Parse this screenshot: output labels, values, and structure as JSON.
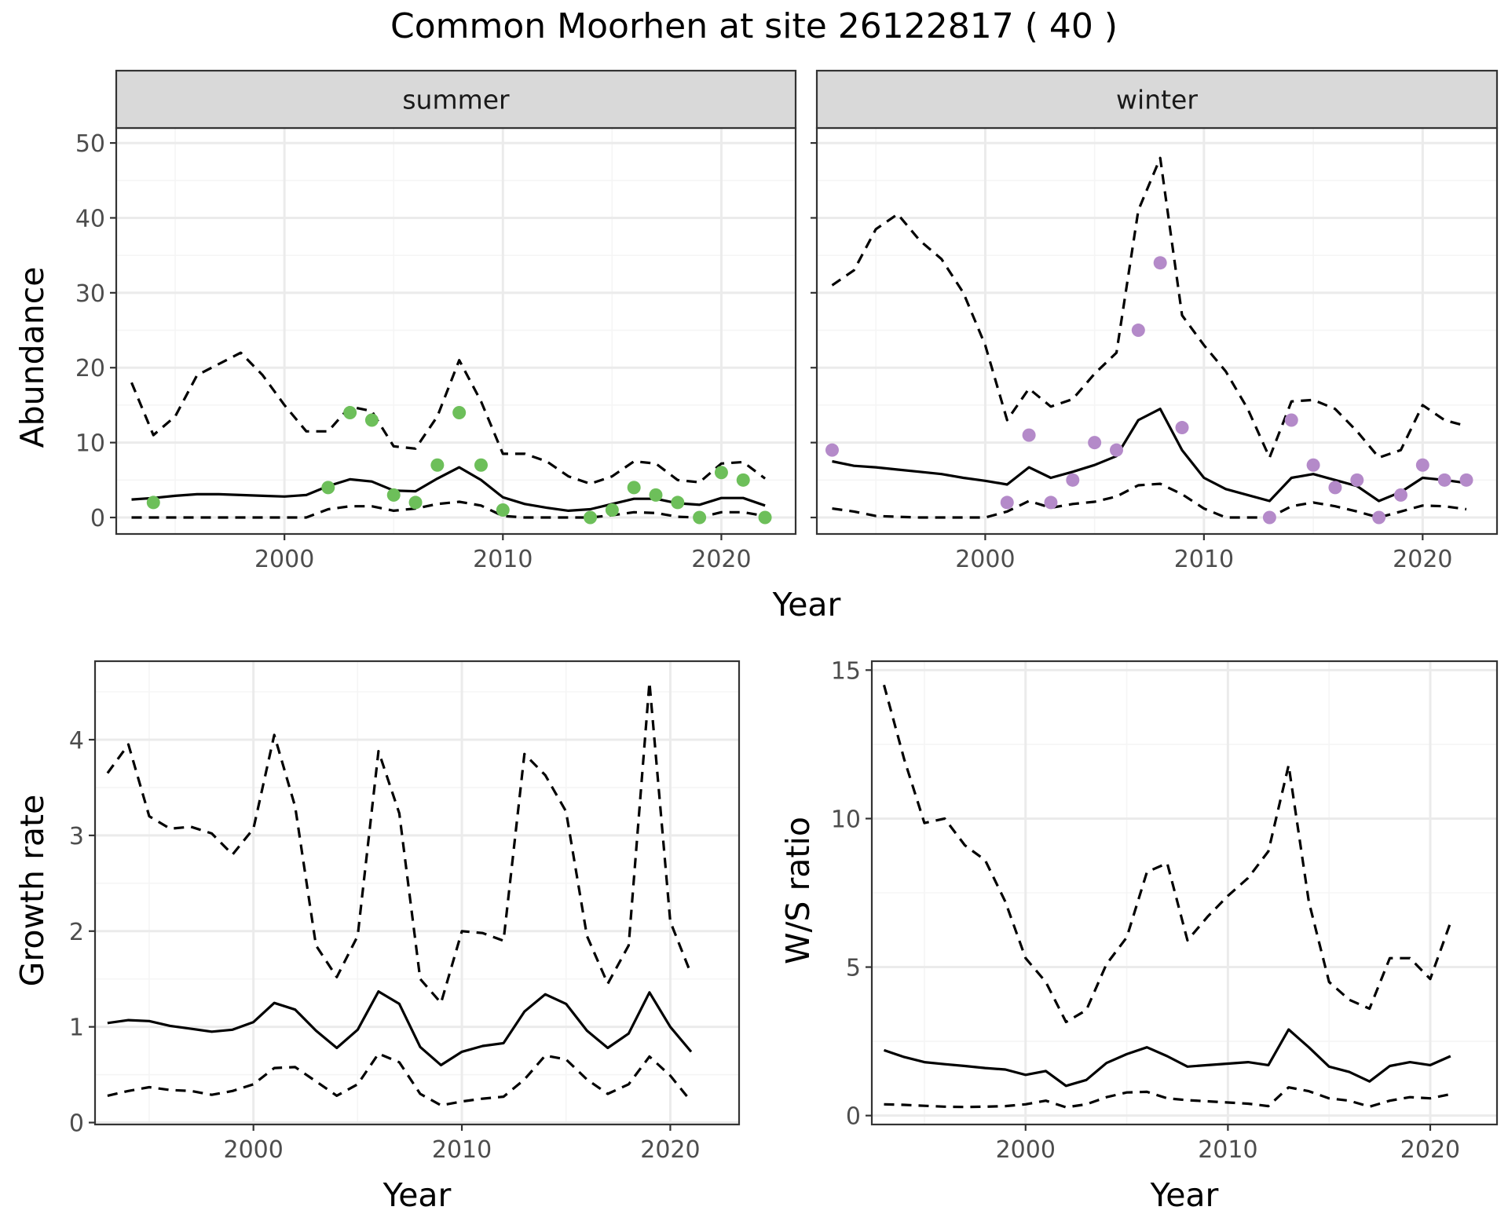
{
  "title": "Common Moorhen at site 26122817 ( 40 )",
  "colors": {
    "summer": "#6dbf5a",
    "winter": "#b48ac9",
    "line": "#000000",
    "grid_major": "#ebebeb",
    "grid_minor": "#f5f5f5",
    "strip_bg": "#d9d9d9"
  },
  "chart_data": [
    {
      "type": "line",
      "panel": "summer",
      "facet_label": "summer",
      "xlabel": "Year",
      "ylabel": "Abundance",
      "xlim": [
        1992.3,
        2023.4
      ],
      "ylim": [
        -2.2,
        52
      ],
      "x_ticks": [
        2000,
        2010,
        2020
      ],
      "y_ticks": [
        0,
        10,
        20,
        30,
        40,
        50
      ],
      "legend": "none",
      "grid": true,
      "series": [
        {
          "role": "fitted",
          "style": "solid",
          "x": [
            1993,
            1994,
            1995,
            1996,
            1997,
            1998,
            1999,
            2000,
            2001,
            2002,
            2003,
            2004,
            2005,
            2006,
            2007,
            2008,
            2009,
            2010,
            2011,
            2012,
            2013,
            2014,
            2015,
            2016,
            2017,
            2018,
            2019,
            2020,
            2021,
            2022
          ],
          "values": [
            2.4,
            2.6,
            2.9,
            3.1,
            3.1,
            3.0,
            2.9,
            2.8,
            3.0,
            4.2,
            5.1,
            4.8,
            3.6,
            3.5,
            5.2,
            6.7,
            5.0,
            2.7,
            1.8,
            1.3,
            0.9,
            1.1,
            1.8,
            2.5,
            2.5,
            1.9,
            1.7,
            2.6,
            2.6,
            1.6
          ]
        },
        {
          "role": "upper",
          "style": "dashed",
          "x": [
            1993,
            1994,
            1995,
            1996,
            1997,
            1998,
            1999,
            2000,
            2001,
            2002,
            2003,
            2004,
            2005,
            2006,
            2007,
            2008,
            2009,
            2010,
            2011,
            2012,
            2013,
            2014,
            2015,
            2016,
            2017,
            2018,
            2019,
            2020,
            2021,
            2022
          ],
          "values": [
            18,
            11,
            13.5,
            19,
            20.5,
            22,
            19,
            15,
            11.5,
            11.5,
            14.8,
            14.2,
            9.5,
            9.2,
            13.5,
            21,
            15.5,
            8.5,
            8.5,
            7.5,
            5.5,
            4.5,
            5.5,
            7.5,
            7.2,
            5,
            4.7,
            7.2,
            7.4,
            5.2
          ]
        },
        {
          "role": "lower",
          "style": "dashed",
          "x": [
            1993,
            1994,
            1995,
            1996,
            1997,
            1998,
            1999,
            2000,
            2001,
            2002,
            2003,
            2004,
            2005,
            2006,
            2007,
            2008,
            2009,
            2010,
            2011,
            2012,
            2013,
            2014,
            2015,
            2016,
            2017,
            2018,
            2019,
            2020,
            2021,
            2022
          ],
          "values": [
            0,
            0,
            0,
            0,
            0,
            0,
            0,
            0,
            0,
            1.1,
            1.5,
            1.5,
            0.9,
            1.2,
            1.8,
            2.1,
            1.6,
            0.2,
            0,
            0,
            0,
            0,
            0.3,
            0.7,
            0.6,
            0.1,
            0,
            0.7,
            0.7,
            0.2
          ]
        },
        {
          "role": "observed",
          "style": "points",
          "x": [
            1994,
            2002,
            2003,
            2004,
            2005,
            2006,
            2007,
            2008,
            2009,
            2010,
            2014,
            2015,
            2016,
            2017,
            2018,
            2019,
            2020,
            2021,
            2022
          ],
          "values": [
            2,
            4,
            14,
            13,
            3,
            2,
            7,
            14,
            7,
            1,
            0,
            1,
            4,
            3,
            2,
            0,
            6,
            5,
            0
          ]
        }
      ]
    },
    {
      "type": "line",
      "panel": "winter",
      "facet_label": "winter",
      "xlabel": "Year",
      "ylabel": "Abundance",
      "xlim": [
        1992.3,
        2023.4
      ],
      "ylim": [
        -2.2,
        52
      ],
      "x_ticks": [
        2000,
        2010,
        2020
      ],
      "y_ticks": [
        0,
        10,
        20,
        30,
        40,
        50
      ],
      "legend": "none",
      "grid": true,
      "series": [
        {
          "role": "fitted",
          "style": "solid",
          "x": [
            1993,
            1994,
            1995,
            1996,
            1997,
            1998,
            1999,
            2000,
            2001,
            2002,
            2003,
            2004,
            2005,
            2006,
            2007,
            2008,
            2009,
            2010,
            2011,
            2012,
            2013,
            2014,
            2015,
            2016,
            2017,
            2018,
            2019,
            2020,
            2021,
            2022
          ],
          "values": [
            7.5,
            6.9,
            6.7,
            6.4,
            6.1,
            5.8,
            5.3,
            4.9,
            4.4,
            6.7,
            5.3,
            6.1,
            7.0,
            8.2,
            13,
            14.5,
            9,
            5.3,
            3.8,
            3.0,
            2.2,
            5.3,
            5.8,
            5.0,
            4.2,
            2.2,
            3.4,
            5.3,
            5.0,
            4.6
          ]
        },
        {
          "role": "upper",
          "style": "dashed",
          "x": [
            1993,
            1994,
            1995,
            1996,
            1997,
            1998,
            1999,
            2000,
            2001,
            2002,
            2003,
            2004,
            2005,
            2006,
            2007,
            2008,
            2009,
            2010,
            2011,
            2012,
            2013,
            2014,
            2015,
            2016,
            2017,
            2018,
            2019,
            2020,
            2021,
            2022
          ],
          "values": [
            31,
            33,
            38.5,
            40.5,
            37,
            34.5,
            30,
            23,
            13,
            17.2,
            14.8,
            15.8,
            19.2,
            22,
            41,
            48,
            27,
            23,
            19.5,
            14.5,
            8,
            15.5,
            15.7,
            14.5,
            11.5,
            8,
            9,
            15,
            13,
            12.2
          ]
        },
        {
          "role": "lower",
          "style": "dashed",
          "x": [
            1993,
            1994,
            1995,
            1996,
            1997,
            1998,
            1999,
            2000,
            2001,
            2002,
            2003,
            2004,
            2005,
            2006,
            2007,
            2008,
            2009,
            2010,
            2011,
            2012,
            2013,
            2014,
            2015,
            2016,
            2017,
            2018,
            2019,
            2020,
            2021,
            2022
          ],
          "values": [
            1.2,
            0.8,
            0.2,
            0.1,
            0,
            0,
            0,
            0,
            0.8,
            2.2,
            1.3,
            1.8,
            2.1,
            2.8,
            4.3,
            4.5,
            3.1,
            1.2,
            0,
            0,
            0,
            1.5,
            2,
            1.5,
            0.8,
            0,
            0.8,
            1.6,
            1.5,
            1.1
          ]
        },
        {
          "role": "observed",
          "style": "points",
          "x": [
            1993,
            2001,
            2002,
            2003,
            2004,
            2005,
            2006,
            2007,
            2008,
            2009,
            2013,
            2014,
            2015,
            2016,
            2017,
            2018,
            2019,
            2020,
            2021,
            2022
          ],
          "values": [
            9,
            2,
            11,
            2,
            5,
            10,
            9,
            25,
            34,
            12,
            0,
            13,
            7,
            4,
            5,
            0,
            3,
            7,
            5,
            5
          ]
        }
      ]
    },
    {
      "type": "line",
      "panel": "growth",
      "xlabel": "Year",
      "ylabel": "Growth rate",
      "xlim": [
        1992.4,
        2023.3
      ],
      "ylim": [
        -0.02,
        4.82
      ],
      "x_ticks": [
        2000,
        2010,
        2020
      ],
      "y_ticks": [
        0,
        1,
        2,
        3,
        4
      ],
      "legend": "none",
      "grid": true,
      "series": [
        {
          "role": "fitted",
          "style": "solid",
          "x": [
            1993,
            1994,
            1995,
            1996,
            1997,
            1998,
            1999,
            2000,
            2001,
            2002,
            2003,
            2004,
            2005,
            2006,
            2007,
            2008,
            2009,
            2010,
            2011,
            2012,
            2013,
            2014,
            2015,
            2016,
            2017,
            2018,
            2019,
            2020,
            2021
          ],
          "values": [
            1.04,
            1.07,
            1.06,
            1.01,
            0.98,
            0.95,
            0.97,
            1.05,
            1.25,
            1.18,
            0.96,
            0.78,
            0.97,
            1.37,
            1.24,
            0.79,
            0.6,
            0.74,
            0.8,
            0.83,
            1.16,
            1.34,
            1.24,
            0.96,
            0.78,
            0.93,
            1.36,
            1.0,
            0.74
          ]
        },
        {
          "role": "upper",
          "style": "dashed",
          "x": [
            1993,
            1994,
            1995,
            1996,
            1997,
            1998,
            1999,
            2000,
            2001,
            2002,
            2003,
            2004,
            2005,
            2006,
            2007,
            2008,
            2009,
            2010,
            2011,
            2012,
            2013,
            2014,
            2015,
            2016,
            2017,
            2018,
            2019,
            2020,
            2021
          ],
          "values": [
            3.65,
            3.95,
            3.2,
            3.07,
            3.09,
            3.02,
            2.8,
            3.07,
            4.05,
            3.3,
            1.85,
            1.52,
            1.95,
            3.88,
            3.23,
            1.5,
            1.25,
            2.0,
            1.98,
            1.9,
            3.85,
            3.63,
            3.25,
            1.95,
            1.45,
            1.85,
            4.6,
            2.1,
            1.55
          ]
        },
        {
          "role": "lower",
          "style": "dashed",
          "x": [
            1993,
            1994,
            1995,
            1996,
            1997,
            1998,
            1999,
            2000,
            2001,
            2002,
            2003,
            2004,
            2005,
            2006,
            2007,
            2008,
            2009,
            2010,
            2011,
            2012,
            2013,
            2014,
            2015,
            2016,
            2017,
            2018,
            2019,
            2020,
            2021
          ],
          "values": [
            0.28,
            0.33,
            0.37,
            0.34,
            0.33,
            0.29,
            0.33,
            0.4,
            0.57,
            0.58,
            0.43,
            0.28,
            0.4,
            0.72,
            0.63,
            0.3,
            0.18,
            0.22,
            0.25,
            0.27,
            0.45,
            0.7,
            0.66,
            0.45,
            0.3,
            0.4,
            0.69,
            0.49,
            0.22
          ]
        }
      ]
    },
    {
      "type": "line",
      "panel": "ratio",
      "xlabel": "Year",
      "ylabel": "W/S ratio",
      "xlim": [
        1992.4,
        2023.3
      ],
      "ylim": [
        -0.3,
        15.3
      ],
      "x_ticks": [
        2000,
        2010,
        2020
      ],
      "y_ticks": [
        0,
        5,
        10,
        15
      ],
      "legend": "none",
      "grid": true,
      "series": [
        {
          "role": "fitted",
          "style": "solid",
          "x": [
            1993,
            1994,
            1995,
            1996,
            1997,
            1998,
            1999,
            2000,
            2001,
            2002,
            2003,
            2004,
            2005,
            2006,
            2007,
            2008,
            2009,
            2010,
            2011,
            2012,
            2013,
            2014,
            2015,
            2016,
            2017,
            2018,
            2019,
            2020,
            2021
          ],
          "values": [
            2.2,
            1.97,
            1.8,
            1.73,
            1.67,
            1.6,
            1.55,
            1.37,
            1.5,
            1.0,
            1.2,
            1.77,
            2.07,
            2.3,
            2.0,
            1.65,
            1.7,
            1.75,
            1.8,
            1.7,
            2.9,
            2.3,
            1.65,
            1.47,
            1.15,
            1.67,
            1.8,
            1.7,
            2.0
          ]
        },
        {
          "role": "upper",
          "style": "dashed",
          "x": [
            1993,
            1994,
            1995,
            1996,
            1997,
            1998,
            1999,
            2000,
            2001,
            2002,
            2003,
            2004,
            2005,
            2006,
            2007,
            2008,
            2009,
            2010,
            2011,
            2012,
            2013,
            2014,
            2015,
            2016,
            2017,
            2018,
            2019,
            2020,
            2021
          ],
          "values": [
            14.5,
            12.0,
            9.85,
            10.0,
            9.1,
            8.6,
            7.2,
            5.3,
            4.5,
            3.15,
            3.55,
            5.1,
            6.0,
            8.2,
            8.5,
            5.9,
            6.7,
            7.4,
            8.0,
            8.9,
            11.8,
            7.2,
            4.5,
            3.9,
            3.6,
            5.3,
            5.3,
            4.6,
            6.5
          ]
        },
        {
          "role": "lower",
          "style": "dashed",
          "x": [
            1993,
            1994,
            1995,
            1996,
            1997,
            1998,
            1999,
            2000,
            2001,
            2002,
            2003,
            2004,
            2005,
            2006,
            2007,
            2008,
            2009,
            2010,
            2011,
            2012,
            2013,
            2014,
            2015,
            2016,
            2017,
            2018,
            2019,
            2020,
            2021
          ],
          "values": [
            0.38,
            0.36,
            0.33,
            0.3,
            0.29,
            0.3,
            0.32,
            0.38,
            0.5,
            0.28,
            0.38,
            0.62,
            0.78,
            0.8,
            0.58,
            0.52,
            0.48,
            0.44,
            0.4,
            0.32,
            0.95,
            0.82,
            0.58,
            0.5,
            0.3,
            0.5,
            0.62,
            0.58,
            0.72
          ]
        }
      ]
    }
  ]
}
